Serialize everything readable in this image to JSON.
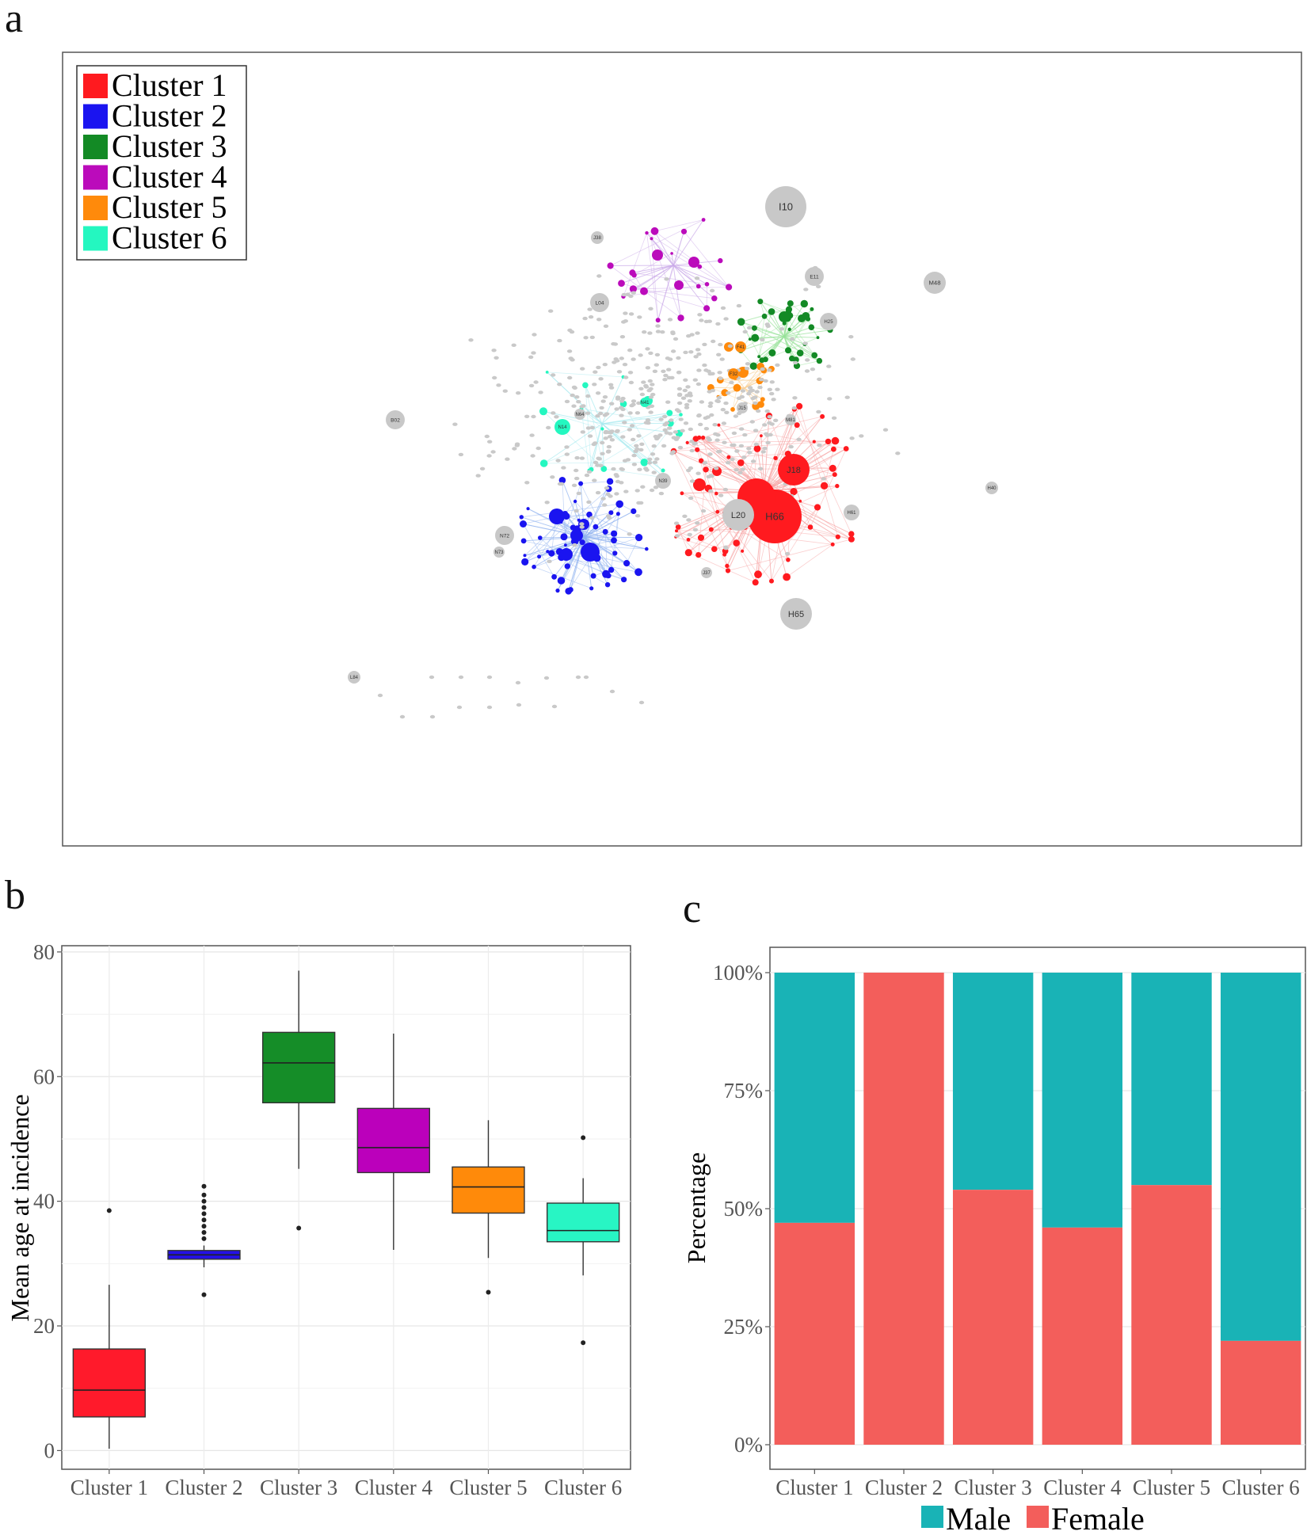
{
  "panels": {
    "a": "a",
    "b": "b",
    "c": "c"
  },
  "chart_data": [
    {
      "type": "network",
      "panel": "a",
      "legend": [
        {
          "label": "Cluster 1",
          "color": "#ff1a1f"
        },
        {
          "label": "Cluster 2",
          "color": "#1a14f0"
        },
        {
          "label": "Cluster 3",
          "color": "#138a25"
        },
        {
          "label": "Cluster 4",
          "color": "#bb0bbb"
        },
        {
          "label": "Cluster 5",
          "color": "#ff8a0b"
        },
        {
          "label": "Cluster 6",
          "color": "#24f7c0"
        }
      ],
      "labeled_nodes": [
        {
          "label": "I10",
          "cluster": 0
        },
        {
          "label": "H66",
          "cluster": 1
        },
        {
          "label": "J18",
          "cluster": 1
        },
        {
          "label": "L20",
          "cluster": 0
        },
        {
          "label": "H65",
          "cluster": 0
        },
        {
          "label": "M48",
          "cluster": 0
        },
        {
          "label": "L04",
          "cluster": 0
        },
        {
          "label": "B02",
          "cluster": 0
        },
        {
          "label": "N72",
          "cluster": 0
        },
        {
          "label": "N14",
          "cluster": 6
        },
        {
          "label": "H25",
          "cluster": 0
        },
        {
          "label": "E11",
          "cluster": 0
        },
        {
          "label": "N39",
          "cluster": 0
        },
        {
          "label": "H61",
          "cluster": 0
        },
        {
          "label": "J38",
          "cluster": 0
        },
        {
          "label": "H40",
          "cluster": 0
        },
        {
          "label": "L84",
          "cluster": 0
        },
        {
          "label": "J37",
          "cluster": 0
        },
        {
          "label": "N73",
          "cluster": 0
        },
        {
          "label": "M81",
          "cluster": 0
        },
        {
          "label": "F41",
          "cluster": 5
        },
        {
          "label": "F32",
          "cluster": 5
        },
        {
          "label": "J15",
          "cluster": 0
        },
        {
          "label": "N64",
          "cluster": 0
        },
        {
          "label": "N41",
          "cluster": 6
        }
      ]
    },
    {
      "type": "boxplot",
      "panel": "b",
      "categories": [
        "Cluster 1",
        "Cluster 2",
        "Cluster 3",
        "Cluster 4",
        "Cluster 5",
        "Cluster 6"
      ],
      "colors": [
        "#ff1a2b",
        "#2410e6",
        "#158d28",
        "#bb00bb",
        "#ff8a0a",
        "#28f5c4"
      ],
      "ylabel": "Mean age at incidence",
      "ylim": [
        -3,
        81
      ],
      "yticks": [
        0,
        20,
        40,
        60,
        80
      ],
      "boxes": [
        {
          "whisker_low": 0.3,
          "q1": 5.4,
          "median": 9.7,
          "q3": 16.3,
          "whisker_high": 26.6,
          "outliers": [
            38.5
          ]
        },
        {
          "whisker_low": 29.4,
          "q1": 30.7,
          "median": 31.4,
          "q3": 32.1,
          "whisker_high": 32.9,
          "outliers": [
            25,
            34,
            35,
            36,
            37,
            38,
            39,
            40,
            41,
            42.4
          ]
        },
        {
          "whisker_low": 45.2,
          "q1": 55.8,
          "median": 62.2,
          "q3": 67.1,
          "whisker_high": 77.0,
          "outliers": [
            35.7
          ]
        },
        {
          "whisker_low": 32.2,
          "q1": 44.6,
          "median": 48.6,
          "q3": 54.9,
          "whisker_high": 66.9,
          "outliers": []
        },
        {
          "whisker_low": 30.9,
          "q1": 38.1,
          "median": 42.3,
          "q3": 45.5,
          "whisker_high": 53.0,
          "outliers": [
            25.4
          ]
        },
        {
          "whisker_low": 28.1,
          "q1": 33.5,
          "median": 35.3,
          "q3": 39.7,
          "whisker_high": 43.7,
          "outliers": [
            50.2,
            17.3
          ]
        }
      ]
    },
    {
      "type": "bar",
      "stacked": true,
      "panel": "c",
      "categories": [
        "Cluster 1",
        "Cluster 2",
        "Cluster 3",
        "Cluster 4",
        "Cluster 5",
        "Cluster 6"
      ],
      "ylabel": "Percentage",
      "yticks": [
        "0%",
        "25%",
        "50%",
        "75%",
        "100%"
      ],
      "legend_position": "bottom",
      "series": [
        {
          "name": "Female",
          "color": "#f35e5b",
          "values": [
            47,
            100,
            54,
            46,
            55,
            22
          ]
        },
        {
          "name": "Male",
          "color": "#19b3b6",
          "values": [
            53,
            0,
            46,
            54,
            45,
            78
          ]
        }
      ]
    }
  ]
}
